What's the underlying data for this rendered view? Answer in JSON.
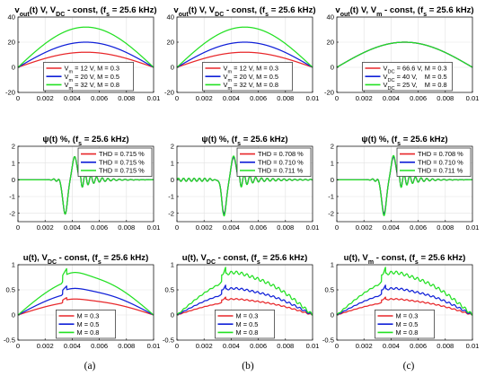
{
  "panel_labels": [
    "(a)",
    "(b)",
    "(c)"
  ],
  "chart_data": [
    {
      "type": "line",
      "title": "v_out(t) V, V_DC - const, (f_s = 25.6 kHz)",
      "title_parts": [
        "v",
        "out",
        "(t) V, V",
        "DC",
        " - const, (f",
        "s",
        " = 25.6 kHz)"
      ],
      "xlim": [
        0,
        0.01
      ],
      "ylim": [
        -20,
        40
      ],
      "xticks": [
        0,
        0.002,
        0.004,
        0.006,
        0.008,
        0.01
      ],
      "yticks": [
        -20,
        0,
        20,
        40
      ],
      "grid": true,
      "legend_position": "bottom-center",
      "series": [
        {
          "legend_parts": [
            "V",
            "m",
            " = 12 V, M = 0.3"
          ],
          "color": "#e8272a",
          "shape": "sine",
          "amplitude": 12
        },
        {
          "legend_parts": [
            "V",
            "m",
            " = 20 V, M = 0.5"
          ],
          "color": "#1020d8",
          "shape": "sine",
          "amplitude": 20
        },
        {
          "legend_parts": [
            "V",
            "m",
            " = 32 V, M = 0.8"
          ],
          "color": "#22e022",
          "shape": "sine",
          "amplitude": 32
        }
      ]
    },
    {
      "type": "line",
      "title": "v_out(t) V, V_DC - const, (f_s = 25.6 kHz)",
      "title_parts": [
        "v",
        "out",
        "(t) V, V",
        "DC",
        " - const, (f",
        "s",
        " = 25.6 kHz)"
      ],
      "xlim": [
        0,
        0.01
      ],
      "ylim": [
        -20,
        40
      ],
      "xticks": [
        0,
        0.002,
        0.004,
        0.006,
        0.008,
        0.01
      ],
      "yticks": [
        -20,
        0,
        20,
        40
      ],
      "grid": true,
      "legend_position": "bottom-center",
      "series": [
        {
          "legend_parts": [
            "V",
            "m",
            " = 12 V, M = 0.3"
          ],
          "color": "#e8272a",
          "shape": "sine",
          "amplitude": 12
        },
        {
          "legend_parts": [
            "V",
            "m",
            " = 20 V, M = 0.5"
          ],
          "color": "#1020d8",
          "shape": "sine",
          "amplitude": 20
        },
        {
          "legend_parts": [
            "V",
            "m",
            " = 32 V, M = 0.8"
          ],
          "color": "#22e022",
          "shape": "sine",
          "amplitude": 32
        }
      ]
    },
    {
      "type": "line",
      "title": "v_out(t) V, V_m - const, (f_s = 25.6 kHz)",
      "title_parts": [
        "v",
        "out",
        "(t) V, V",
        "m",
        " - const, (f",
        "s",
        " = 25.6 kHz)"
      ],
      "xlim": [
        0,
        0.01
      ],
      "ylim": [
        -20,
        40
      ],
      "xticks": [
        0,
        0.002,
        0.004,
        0.006,
        0.008,
        0.01
      ],
      "yticks": [
        -20,
        0,
        20,
        40
      ],
      "grid": true,
      "legend_position": "bottom-center",
      "series": [
        {
          "legend_parts": [
            "V",
            "DC",
            " = 66.6 V, M = 0.3"
          ],
          "color": "#e8272a",
          "shape": "sine",
          "amplitude": 20
        },
        {
          "legend_parts": [
            "V",
            "DC",
            " = 40 V,    M = 0.5"
          ],
          "color": "#1020d8",
          "shape": "sine",
          "amplitude": 20
        },
        {
          "legend_parts": [
            "V",
            "DC",
            " = 25 V,    M = 0.8"
          ],
          "color": "#22e022",
          "shape": "sine",
          "amplitude": 20
        }
      ]
    },
    {
      "type": "line",
      "title": "ψ(t) %, (f_s = 25.6 kHz)",
      "title_parts": [
        "ψ(t) %, (f",
        "s",
        " = 25.6 kHz)"
      ],
      "xlim": [
        0,
        0.01
      ],
      "ylim": [
        -2.5,
        2
      ],
      "xticks": [
        0,
        0.002,
        0.004,
        0.006,
        0.008,
        0.01
      ],
      "yticks": [
        -2,
        -1,
        0,
        1,
        2
      ],
      "grid": true,
      "legend_position": "top-right",
      "series": [
        {
          "legend_parts": [
            "THD = 0.715 %"
          ],
          "color": "#e8272a",
          "shape": "psi",
          "ripple": 0,
          "wiggle": 0
        },
        {
          "legend_parts": [
            "THD = 0.715 %"
          ],
          "color": "#1020d8",
          "shape": "psi",
          "ripple": 0,
          "wiggle": 0
        },
        {
          "legend_parts": [
            "THD = 0.715 %"
          ],
          "color": "#22e022",
          "shape": "psi",
          "ripple": 0,
          "wiggle": 0
        }
      ]
    },
    {
      "type": "line",
      "title": "ψ(t) %, (f_s = 25.6 kHz)",
      "title_parts": [
        "ψ(t) %, (f",
        "s",
        " = 25.6 kHz)"
      ],
      "xlim": [
        0,
        0.01
      ],
      "ylim": [
        -2.5,
        2
      ],
      "xticks": [
        0,
        0.002,
        0.004,
        0.006,
        0.008,
        0.01
      ],
      "yticks": [
        -2,
        -1,
        0,
        1,
        2
      ],
      "grid": true,
      "legend_position": "top-right",
      "series": [
        {
          "legend_parts": [
            "THD = 0.708 %"
          ],
          "color": "#e8272a",
          "shape": "psi",
          "ripple": 0.09,
          "wiggle": 0.02
        },
        {
          "legend_parts": [
            "THD = 0.710 %"
          ],
          "color": "#1020d8",
          "shape": "psi",
          "ripple": 0.09,
          "wiggle": 0.05
        },
        {
          "legend_parts": [
            "THD = 0.711 %"
          ],
          "color": "#22e022",
          "shape": "psi",
          "ripple": 0.09,
          "wiggle": 0.08
        }
      ]
    },
    {
      "type": "line",
      "title": "ψ(t) %, (f_s = 25.6 kHz)",
      "title_parts": [
        "ψ(t) %, (f",
        "s",
        " = 25.6 kHz)"
      ],
      "xlim": [
        0,
        0.01
      ],
      "ylim": [
        -2.5,
        2
      ],
      "xticks": [
        0,
        0.002,
        0.004,
        0.006,
        0.008,
        0.01
      ],
      "yticks": [
        -2,
        -1,
        0,
        1,
        2
      ],
      "grid": true,
      "legend_position": "top-right",
      "series": [
        {
          "legend_parts": [
            "THD = 0.708 %"
          ],
          "color": "#e8272a",
          "shape": "psi",
          "ripple": 0,
          "wiggle": 0.02
        },
        {
          "legend_parts": [
            "THD = 0.710 %"
          ],
          "color": "#1020d8",
          "shape": "psi",
          "ripple": 0,
          "wiggle": 0.05
        },
        {
          "legend_parts": [
            "THD = 0.711 %"
          ],
          "color": "#22e022",
          "shape": "psi",
          "ripple": 0,
          "wiggle": 0.08
        }
      ]
    },
    {
      "type": "line",
      "title": "u(t), V_DC - const, (f_s = 25.6 kHz)",
      "title_parts": [
        "u(t), V",
        "DC",
        " - const, (f",
        "s",
        " = 25.6 kHz)"
      ],
      "xlim": [
        0,
        0.01
      ],
      "ylim": [
        -0.5,
        1
      ],
      "xticks": [
        0,
        0.002,
        0.004,
        0.006,
        0.008,
        0.01
      ],
      "yticks": [
        -0.5,
        0,
        0.5,
        1
      ],
      "grid": true,
      "legend_position": "bottom-center",
      "series": [
        {
          "legend_parts": [
            "M = 0.3"
          ],
          "color": "#e8272a",
          "shape": "u",
          "M": 0.3,
          "ripple": 0
        },
        {
          "legend_parts": [
            "M = 0.5"
          ],
          "color": "#1020d8",
          "shape": "u",
          "M": 0.5,
          "ripple": 0
        },
        {
          "legend_parts": [
            "M = 0.8"
          ],
          "color": "#22e022",
          "shape": "u",
          "M": 0.8,
          "ripple": 0
        }
      ]
    },
    {
      "type": "line",
      "title": "u(t), V_DC - const, (f_s = 25.6 kHz)",
      "title_parts": [
        "u(t), V",
        "DC",
        " - const, (f",
        "s",
        " = 25.6 kHz)"
      ],
      "xlim": [
        0,
        0.01
      ],
      "ylim": [
        -0.5,
        1
      ],
      "xticks": [
        0,
        0.002,
        0.004,
        0.006,
        0.008,
        0.01
      ],
      "yticks": [
        -0.5,
        0,
        0.5,
        1
      ],
      "grid": true,
      "legend_position": "bottom-center",
      "series": [
        {
          "legend_parts": [
            "M = 0.3"
          ],
          "color": "#e8272a",
          "shape": "u",
          "M": 0.3,
          "ripple": 1
        },
        {
          "legend_parts": [
            "M = 0.5"
          ],
          "color": "#1020d8",
          "shape": "u",
          "M": 0.5,
          "ripple": 1
        },
        {
          "legend_parts": [
            "M = 0.8"
          ],
          "color": "#22e022",
          "shape": "u",
          "M": 0.8,
          "ripple": 1
        }
      ]
    },
    {
      "type": "line",
      "title": "u(t), V_m - const, (f_s = 25.6 kHz)",
      "title_parts": [
        "u(t), V",
        "m",
        " - const, (f",
        "s",
        " = 25.6 kHz)"
      ],
      "xlim": [
        0,
        0.01
      ],
      "ylim": [
        -0.5,
        1
      ],
      "xticks": [
        0,
        0.002,
        0.004,
        0.006,
        0.008,
        0.01
      ],
      "yticks": [
        -0.5,
        0,
        0.5,
        1
      ],
      "grid": true,
      "legend_position": "bottom-center",
      "series": [
        {
          "legend_parts": [
            "M = 0.3"
          ],
          "color": "#e8272a",
          "shape": "u",
          "M": 0.3,
          "ripple": 1
        },
        {
          "legend_parts": [
            "M = 0.5"
          ],
          "color": "#1020d8",
          "shape": "u",
          "M": 0.5,
          "ripple": 1
        },
        {
          "legend_parts": [
            "M = 0.8"
          ],
          "color": "#22e022",
          "shape": "u",
          "M": 0.8,
          "ripple": 1
        }
      ]
    }
  ]
}
